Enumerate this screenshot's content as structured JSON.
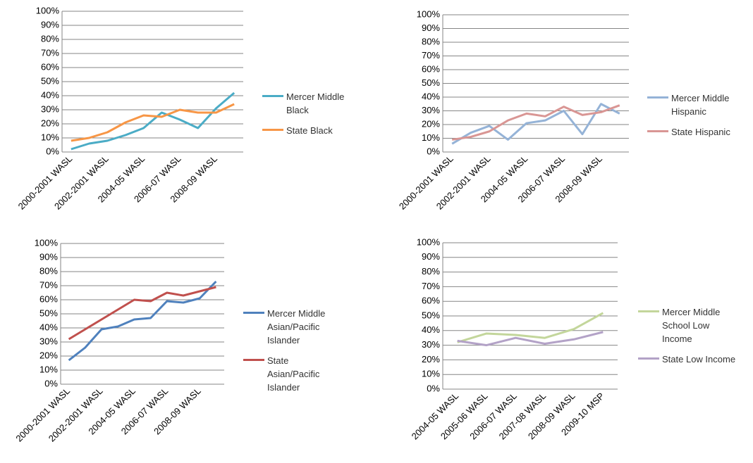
{
  "chart_data": [
    {
      "type": "line",
      "categories": [
        "2000-2001 WASL",
        null,
        "2002-2001 WASL",
        null,
        "2004-05 WASL",
        null,
        "2006-07 WASL",
        null,
        "2008-09 WASL",
        null
      ],
      "series": [
        {
          "name": "Mercer Middle Black",
          "color": "#4bacc6",
          "values": [
            2,
            6,
            8,
            12,
            17,
            28,
            23,
            17,
            31,
            42
          ]
        },
        {
          "name": "State Black",
          "color": "#f79646",
          "values": [
            8,
            10,
            14,
            21,
            26,
            25,
            30,
            28,
            28,
            34
          ]
        }
      ],
      "ylim": [
        0,
        100
      ],
      "yticks": [
        {
          "value": 0,
          "label": "0%"
        },
        {
          "value": 10,
          "label": "10%"
        },
        {
          "value": 20,
          "label": "20%"
        },
        {
          "value": 30,
          "label": "30%"
        },
        {
          "value": 40,
          "label": "40%"
        },
        {
          "value": 50,
          "label": "50%"
        },
        {
          "value": 60,
          "label": "60%"
        },
        {
          "value": 70,
          "label": "70%"
        },
        {
          "value": 80,
          "label": "80%"
        },
        {
          "value": 90,
          "label": "90%"
        },
        {
          "value": 100,
          "label": "100%"
        }
      ],
      "grid": true
    },
    {
      "type": "line",
      "categories": [
        "2000-2001 WASL",
        null,
        "2002-2001 WASL",
        null,
        "2004-05 WASL",
        null,
        "2006-07 WASL",
        null,
        "2008-09 WASL",
        null
      ],
      "series": [
        {
          "name": "Mercer Middle Hispanic",
          "color": "#95b3d7",
          "values": [
            6,
            14,
            19,
            9,
            21,
            23,
            30,
            13,
            35,
            28
          ]
        },
        {
          "name": "State Hispanic",
          "color": "#d99694",
          "values": [
            9,
            11,
            15,
            23,
            28,
            26,
            33,
            27,
            29,
            34
          ]
        }
      ],
      "ylim": [
        0,
        100
      ],
      "yticks": [
        {
          "value": 0,
          "label": "0%"
        },
        {
          "value": 10,
          "label": "10%"
        },
        {
          "value": 20,
          "label": "20%"
        },
        {
          "value": 30,
          "label": "30%"
        },
        {
          "value": 40,
          "label": "40%"
        },
        {
          "value": 50,
          "label": "50%"
        },
        {
          "value": 60,
          "label": "60%"
        },
        {
          "value": 70,
          "label": "70%"
        },
        {
          "value": 80,
          "label": "80%"
        },
        {
          "value": 90,
          "label": "90%"
        },
        {
          "value": 100,
          "label": "100%"
        }
      ],
      "grid": true
    },
    {
      "type": "line",
      "categories": [
        "2000-2001 WASL",
        null,
        "2002-2001 WASL",
        null,
        "2004-05 WASL",
        null,
        "2006-07 WASL",
        null,
        "2008-09 WASL",
        null
      ],
      "series": [
        {
          "name": "Mercer Middle Asian/Pacific Islander",
          "color": "#4f81bd",
          "values": [
            17,
            26,
            39,
            41,
            46,
            47,
            59,
            58,
            61,
            73
          ]
        },
        {
          "name": "State Asian/Pacific Islander",
          "color": "#c0504d",
          "values": [
            32,
            39,
            46,
            53,
            60,
            59,
            65,
            63,
            66,
            69
          ]
        }
      ],
      "ylim": [
        0,
        100
      ],
      "yticks": [
        {
          "value": 0,
          "label": "0%"
        },
        {
          "value": 10,
          "label": "10%"
        },
        {
          "value": 20,
          "label": "20%"
        },
        {
          "value": 30,
          "label": "30%"
        },
        {
          "value": 40,
          "label": "40%"
        },
        {
          "value": 50,
          "label": "50%"
        },
        {
          "value": 60,
          "label": "60%"
        },
        {
          "value": 70,
          "label": "70%"
        },
        {
          "value": 80,
          "label": "80%"
        },
        {
          "value": 90,
          "label": "90%"
        },
        {
          "value": 100,
          "label": "100%"
        }
      ],
      "grid": true
    },
    {
      "type": "line",
      "categories": [
        "2004-05 WASL",
        "2005-06 WASL",
        "2006-07 WASL",
        "2007-08 WASL",
        "2008-09 WASL",
        "2009-10 MSP"
      ],
      "series": [
        {
          "name": "Mercer Middle School Low Income",
          "color": "#c3d69b",
          "values": [
            32,
            38,
            37,
            35,
            41,
            52
          ]
        },
        {
          "name": "State Low Income",
          "color": "#b3a2c7",
          "values": [
            33,
            30,
            35,
            31,
            34,
            39
          ]
        }
      ],
      "ylim": [
        0,
        100
      ],
      "yticks": [
        {
          "value": 0,
          "label": "0%"
        },
        {
          "value": 10,
          "label": "10%"
        },
        {
          "value": 20,
          "label": "20%"
        },
        {
          "value": 30,
          "label": "30%"
        },
        {
          "value": 40,
          "label": "40%"
        },
        {
          "value": 50,
          "label": "50%"
        },
        {
          "value": 60,
          "label": "60%"
        },
        {
          "value": 70,
          "label": "70%"
        },
        {
          "value": 80,
          "label": "80%"
        },
        {
          "value": 90,
          "label": "90%"
        },
        {
          "value": 100,
          "label": "100%"
        }
      ],
      "grid": true
    }
  ]
}
